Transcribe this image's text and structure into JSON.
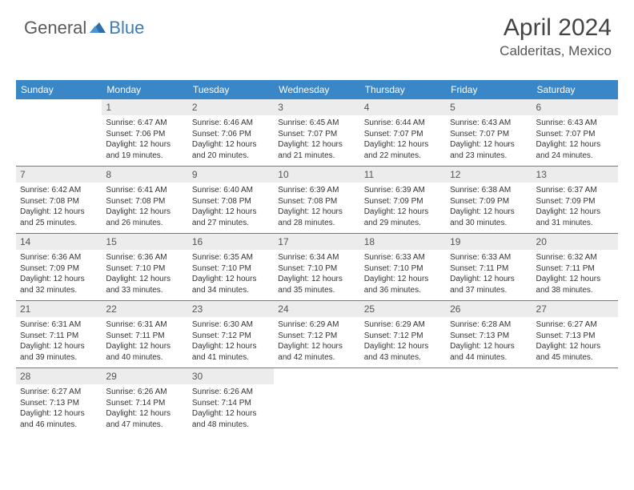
{
  "logo": {
    "text1": "General",
    "text2": "Blue"
  },
  "header": {
    "month": "April 2024",
    "location": "Calderitas, Mexico"
  },
  "style": {
    "header_bg": "#3a87c8",
    "header_fg": "#ffffff",
    "daynum_bg": "#ececec",
    "row_border": "#3a87c8",
    "body_font_size": 10,
    "header_font_size": 12
  },
  "daynames": [
    "Sunday",
    "Monday",
    "Tuesday",
    "Wednesday",
    "Thursday",
    "Friday",
    "Saturday"
  ],
  "weeks": [
    [
      {
        "n": "",
        "sunrise": "",
        "sunset": "",
        "day1": "",
        "day2": ""
      },
      {
        "n": "1",
        "sunrise": "Sunrise: 6:47 AM",
        "sunset": "Sunset: 7:06 PM",
        "day1": "Daylight: 12 hours",
        "day2": "and 19 minutes."
      },
      {
        "n": "2",
        "sunrise": "Sunrise: 6:46 AM",
        "sunset": "Sunset: 7:06 PM",
        "day1": "Daylight: 12 hours",
        "day2": "and 20 minutes."
      },
      {
        "n": "3",
        "sunrise": "Sunrise: 6:45 AM",
        "sunset": "Sunset: 7:07 PM",
        "day1": "Daylight: 12 hours",
        "day2": "and 21 minutes."
      },
      {
        "n": "4",
        "sunrise": "Sunrise: 6:44 AM",
        "sunset": "Sunset: 7:07 PM",
        "day1": "Daylight: 12 hours",
        "day2": "and 22 minutes."
      },
      {
        "n": "5",
        "sunrise": "Sunrise: 6:43 AM",
        "sunset": "Sunset: 7:07 PM",
        "day1": "Daylight: 12 hours",
        "day2": "and 23 minutes."
      },
      {
        "n": "6",
        "sunrise": "Sunrise: 6:43 AM",
        "sunset": "Sunset: 7:07 PM",
        "day1": "Daylight: 12 hours",
        "day2": "and 24 minutes."
      }
    ],
    [
      {
        "n": "7",
        "sunrise": "Sunrise: 6:42 AM",
        "sunset": "Sunset: 7:08 PM",
        "day1": "Daylight: 12 hours",
        "day2": "and 25 minutes."
      },
      {
        "n": "8",
        "sunrise": "Sunrise: 6:41 AM",
        "sunset": "Sunset: 7:08 PM",
        "day1": "Daylight: 12 hours",
        "day2": "and 26 minutes."
      },
      {
        "n": "9",
        "sunrise": "Sunrise: 6:40 AM",
        "sunset": "Sunset: 7:08 PM",
        "day1": "Daylight: 12 hours",
        "day2": "and 27 minutes."
      },
      {
        "n": "10",
        "sunrise": "Sunrise: 6:39 AM",
        "sunset": "Sunset: 7:08 PM",
        "day1": "Daylight: 12 hours",
        "day2": "and 28 minutes."
      },
      {
        "n": "11",
        "sunrise": "Sunrise: 6:39 AM",
        "sunset": "Sunset: 7:09 PM",
        "day1": "Daylight: 12 hours",
        "day2": "and 29 minutes."
      },
      {
        "n": "12",
        "sunrise": "Sunrise: 6:38 AM",
        "sunset": "Sunset: 7:09 PM",
        "day1": "Daylight: 12 hours",
        "day2": "and 30 minutes."
      },
      {
        "n": "13",
        "sunrise": "Sunrise: 6:37 AM",
        "sunset": "Sunset: 7:09 PM",
        "day1": "Daylight: 12 hours",
        "day2": "and 31 minutes."
      }
    ],
    [
      {
        "n": "14",
        "sunrise": "Sunrise: 6:36 AM",
        "sunset": "Sunset: 7:09 PM",
        "day1": "Daylight: 12 hours",
        "day2": "and 32 minutes."
      },
      {
        "n": "15",
        "sunrise": "Sunrise: 6:36 AM",
        "sunset": "Sunset: 7:10 PM",
        "day1": "Daylight: 12 hours",
        "day2": "and 33 minutes."
      },
      {
        "n": "16",
        "sunrise": "Sunrise: 6:35 AM",
        "sunset": "Sunset: 7:10 PM",
        "day1": "Daylight: 12 hours",
        "day2": "and 34 minutes."
      },
      {
        "n": "17",
        "sunrise": "Sunrise: 6:34 AM",
        "sunset": "Sunset: 7:10 PM",
        "day1": "Daylight: 12 hours",
        "day2": "and 35 minutes."
      },
      {
        "n": "18",
        "sunrise": "Sunrise: 6:33 AM",
        "sunset": "Sunset: 7:10 PM",
        "day1": "Daylight: 12 hours",
        "day2": "and 36 minutes."
      },
      {
        "n": "19",
        "sunrise": "Sunrise: 6:33 AM",
        "sunset": "Sunset: 7:11 PM",
        "day1": "Daylight: 12 hours",
        "day2": "and 37 minutes."
      },
      {
        "n": "20",
        "sunrise": "Sunrise: 6:32 AM",
        "sunset": "Sunset: 7:11 PM",
        "day1": "Daylight: 12 hours",
        "day2": "and 38 minutes."
      }
    ],
    [
      {
        "n": "21",
        "sunrise": "Sunrise: 6:31 AM",
        "sunset": "Sunset: 7:11 PM",
        "day1": "Daylight: 12 hours",
        "day2": "and 39 minutes."
      },
      {
        "n": "22",
        "sunrise": "Sunrise: 6:31 AM",
        "sunset": "Sunset: 7:11 PM",
        "day1": "Daylight: 12 hours",
        "day2": "and 40 minutes."
      },
      {
        "n": "23",
        "sunrise": "Sunrise: 6:30 AM",
        "sunset": "Sunset: 7:12 PM",
        "day1": "Daylight: 12 hours",
        "day2": "and 41 minutes."
      },
      {
        "n": "24",
        "sunrise": "Sunrise: 6:29 AM",
        "sunset": "Sunset: 7:12 PM",
        "day1": "Daylight: 12 hours",
        "day2": "and 42 minutes."
      },
      {
        "n": "25",
        "sunrise": "Sunrise: 6:29 AM",
        "sunset": "Sunset: 7:12 PM",
        "day1": "Daylight: 12 hours",
        "day2": "and 43 minutes."
      },
      {
        "n": "26",
        "sunrise": "Sunrise: 6:28 AM",
        "sunset": "Sunset: 7:13 PM",
        "day1": "Daylight: 12 hours",
        "day2": "and 44 minutes."
      },
      {
        "n": "27",
        "sunrise": "Sunrise: 6:27 AM",
        "sunset": "Sunset: 7:13 PM",
        "day1": "Daylight: 12 hours",
        "day2": "and 45 minutes."
      }
    ],
    [
      {
        "n": "28",
        "sunrise": "Sunrise: 6:27 AM",
        "sunset": "Sunset: 7:13 PM",
        "day1": "Daylight: 12 hours",
        "day2": "and 46 minutes."
      },
      {
        "n": "29",
        "sunrise": "Sunrise: 6:26 AM",
        "sunset": "Sunset: 7:14 PM",
        "day1": "Daylight: 12 hours",
        "day2": "and 47 minutes."
      },
      {
        "n": "30",
        "sunrise": "Sunrise: 6:26 AM",
        "sunset": "Sunset: 7:14 PM",
        "day1": "Daylight: 12 hours",
        "day2": "and 48 minutes."
      },
      {
        "n": "",
        "sunrise": "",
        "sunset": "",
        "day1": "",
        "day2": ""
      },
      {
        "n": "",
        "sunrise": "",
        "sunset": "",
        "day1": "",
        "day2": ""
      },
      {
        "n": "",
        "sunrise": "",
        "sunset": "",
        "day1": "",
        "day2": ""
      },
      {
        "n": "",
        "sunrise": "",
        "sunset": "",
        "day1": "",
        "day2": ""
      }
    ]
  ]
}
